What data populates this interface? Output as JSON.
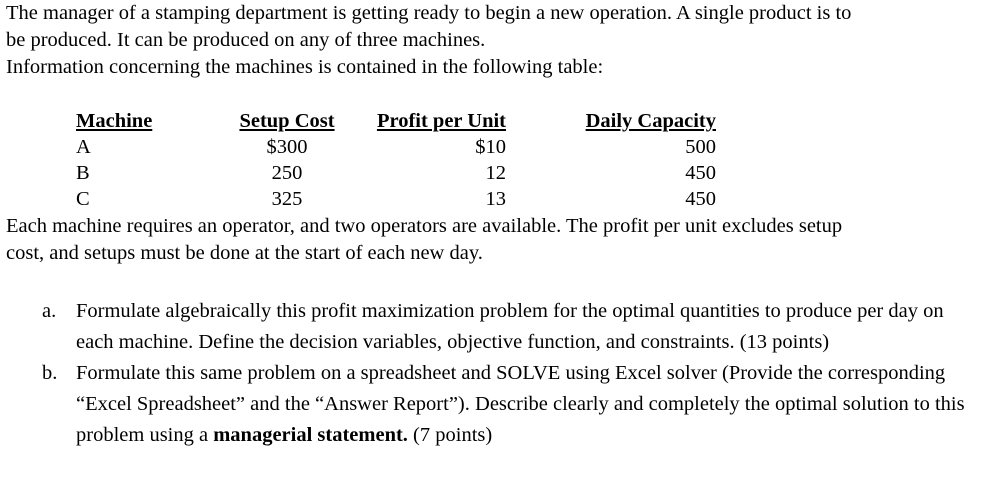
{
  "intro": {
    "line1": "The manager of a stamping department is getting ready to begin a new operation. A single product is to",
    "line2": "be produced. It can be produced on any of three machines.",
    "line3": "Information concerning the machines is contained in the following table:"
  },
  "table": {
    "headers": {
      "machine": "Machine",
      "setup": "Setup Cost",
      "profit": "Profit per Unit",
      "capacity": "Daily Capacity"
    },
    "rows": [
      {
        "machine": "A",
        "setup": "$300",
        "profit": "$10",
        "capacity": "500"
      },
      {
        "machine": "B",
        "setup": "250",
        "profit": "12",
        "capacity": "450"
      },
      {
        "machine": "C",
        "setup": "325",
        "profit": "13",
        "capacity": "450"
      }
    ]
  },
  "footer": {
    "line1": "Each machine requires an operator, and two operators are available. The profit per unit excludes setup",
    "line2": "cost, and setups must be done at the start of each new day."
  },
  "questions": {
    "a": {
      "letter": "a.",
      "text": "Formulate algebraically this profit maximization problem for the optimal quantities to produce per day on each machine. Define the decision variables, objective function, and constraints. (13 points)"
    },
    "b": {
      "letter": "b.",
      "text_before": "Formulate this same problem on a spreadsheet and SOLVE using Excel solver (Provide the corresponding “Excel Spreadsheet” and the “Answer Report”). Describe clearly and completely the optimal solution to this problem using a ",
      "bold": "managerial statement.",
      "text_after": " (7 points)"
    }
  }
}
